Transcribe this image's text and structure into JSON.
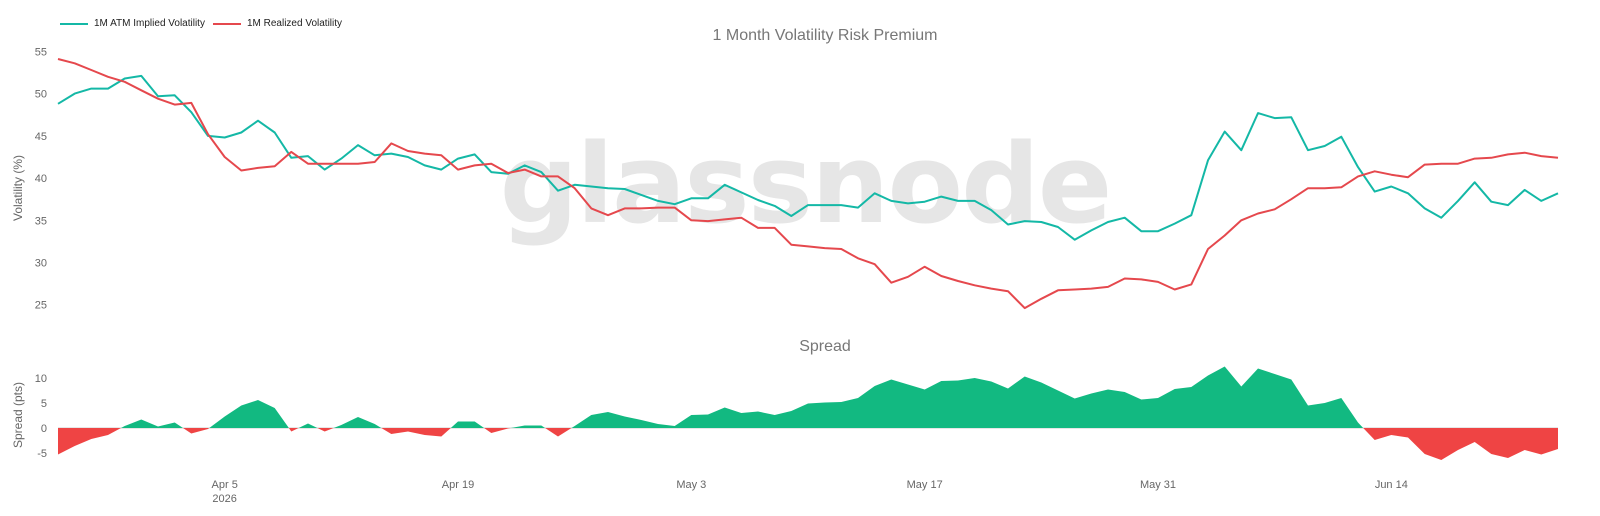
{
  "chart_data": [
    {
      "type": "line",
      "title": "1 Month Volatility Risk Premium",
      "ylabel": "Volatility (%)",
      "ylim": [
        22,
        56
      ],
      "yticks": [
        25,
        30,
        35,
        40,
        45,
        50,
        55
      ],
      "legend": "top-left",
      "series": [
        {
          "name": "1M ATM Implied Volatility",
          "color": "#14b8a6",
          "values": [
            48.8,
            50.0,
            50.6,
            50.6,
            51.8,
            52.1,
            49.7,
            49.8,
            47.8,
            45.0,
            44.8,
            45.4,
            46.8,
            45.4,
            42.4,
            42.6,
            41.0,
            42.3,
            43.9,
            42.7,
            42.9,
            42.5,
            41.5,
            41.0,
            42.3,
            42.8,
            40.7,
            40.5,
            41.5,
            40.7,
            38.5,
            39.2,
            39.0,
            38.8,
            38.7,
            38.0,
            37.3,
            36.9,
            37.6,
            37.6,
            39.2,
            38.3,
            37.4,
            36.7,
            35.5,
            36.8,
            36.8,
            36.8,
            36.5,
            38.2,
            37.3,
            37.0,
            37.2,
            37.8,
            37.3,
            37.3,
            36.2,
            34.5,
            34.9,
            34.8,
            34.2,
            32.7,
            33.8,
            34.8,
            35.3,
            33.7,
            33.7,
            34.6,
            35.6,
            42.1,
            45.5,
            43.3,
            47.7,
            47.1,
            47.2,
            43.3,
            43.8,
            44.9,
            41.3,
            38.4,
            39.0,
            38.2,
            36.4,
            35.3,
            37.3,
            39.5,
            37.2,
            36.8,
            38.6,
            37.3,
            38.2
          ]
        },
        {
          "name": "1M Realized Volatility",
          "color": "#e5484d",
          "values": [
            54.1,
            53.6,
            52.8,
            52.0,
            51.4,
            50.4,
            49.4,
            48.7,
            48.9,
            45.2,
            42.5,
            40.9,
            41.2,
            41.4,
            43.1,
            41.7,
            41.7,
            41.7,
            41.7,
            41.9,
            44.1,
            43.2,
            42.9,
            42.7,
            41.0,
            41.5,
            41.7,
            40.6,
            41.0,
            40.2,
            40.2,
            38.8,
            36.4,
            35.6,
            36.4,
            36.4,
            36.5,
            36.5,
            35.0,
            34.9,
            35.1,
            35.3,
            34.1,
            34.1,
            32.1,
            31.9,
            31.7,
            31.6,
            30.5,
            29.8,
            27.6,
            28.3,
            29.5,
            28.4,
            27.8,
            27.3,
            26.9,
            26.6,
            24.6,
            25.7,
            26.7,
            26.8,
            26.9,
            27.1,
            28.1,
            28.0,
            27.7,
            26.8,
            27.4,
            31.6,
            33.2,
            35.0,
            35.8,
            36.3,
            37.5,
            38.8,
            38.8,
            38.9,
            40.2,
            40.8,
            40.4,
            40.1,
            41.6,
            41.7,
            41.7,
            42.3,
            42.4,
            42.8,
            43.0,
            42.6,
            42.4
          ]
        }
      ]
    },
    {
      "type": "area",
      "title": "Spread",
      "ylabel": "Spread (pts)",
      "ylim": [
        -8,
        14
      ],
      "yticks": [
        -5,
        0,
        5,
        10
      ],
      "positive_color": "#12b981",
      "negative_color": "#ef4444",
      "series": [
        {
          "name": "",
          "values": [
            -5.3,
            -3.6,
            -2.2,
            -1.4,
            0.4,
            1.7,
            0.3,
            1.1,
            -1.1,
            -0.2,
            2.3,
            4.5,
            5.6,
            4.0,
            -0.7,
            0.9,
            -0.7,
            0.6,
            2.2,
            0.8,
            -1.2,
            -0.7,
            -1.4,
            -1.7,
            1.3,
            1.3,
            -1.0,
            -0.1,
            0.5,
            0.5,
            -1.7,
            0.4,
            2.6,
            3.2,
            2.3,
            1.6,
            0.8,
            0.4,
            2.6,
            2.7,
            4.1,
            3.0,
            3.3,
            2.6,
            3.4,
            4.9,
            5.1,
            5.2,
            6.0,
            8.4,
            9.7,
            8.7,
            7.7,
            9.4,
            9.5,
            10.0,
            9.3,
            7.9,
            10.3,
            9.1,
            7.5,
            5.9,
            6.9,
            7.7,
            7.2,
            5.7,
            6.0,
            7.8,
            8.2,
            10.5,
            12.3,
            8.3,
            11.9,
            10.8,
            9.7,
            4.5,
            5.0,
            6.0,
            1.1,
            -2.4,
            -1.4,
            -1.9,
            -5.2,
            -6.4,
            -4.4,
            -2.8,
            -5.2,
            -6.0,
            -4.4,
            -5.3,
            -4.2
          ]
        }
      ]
    }
  ],
  "x_axis": {
    "ticks": [
      {
        "label": "Apr 5",
        "sub": "2026",
        "index": 10
      },
      {
        "label": "Apr 19",
        "sub": "",
        "index": 24
      },
      {
        "label": "May 3",
        "sub": "",
        "index": 38
      },
      {
        "label": "May 17",
        "sub": "",
        "index": 52
      },
      {
        "label": "May 31",
        "sub": "",
        "index": 66
      },
      {
        "label": "Jun 14",
        "sub": "",
        "index": 80
      }
    ]
  },
  "legend": [
    {
      "label": "1M ATM Implied Volatility",
      "color": "#14b8a6"
    },
    {
      "label": "1M Realized Volatility",
      "color": "#e5484d"
    }
  ],
  "watermark": "glassnode"
}
